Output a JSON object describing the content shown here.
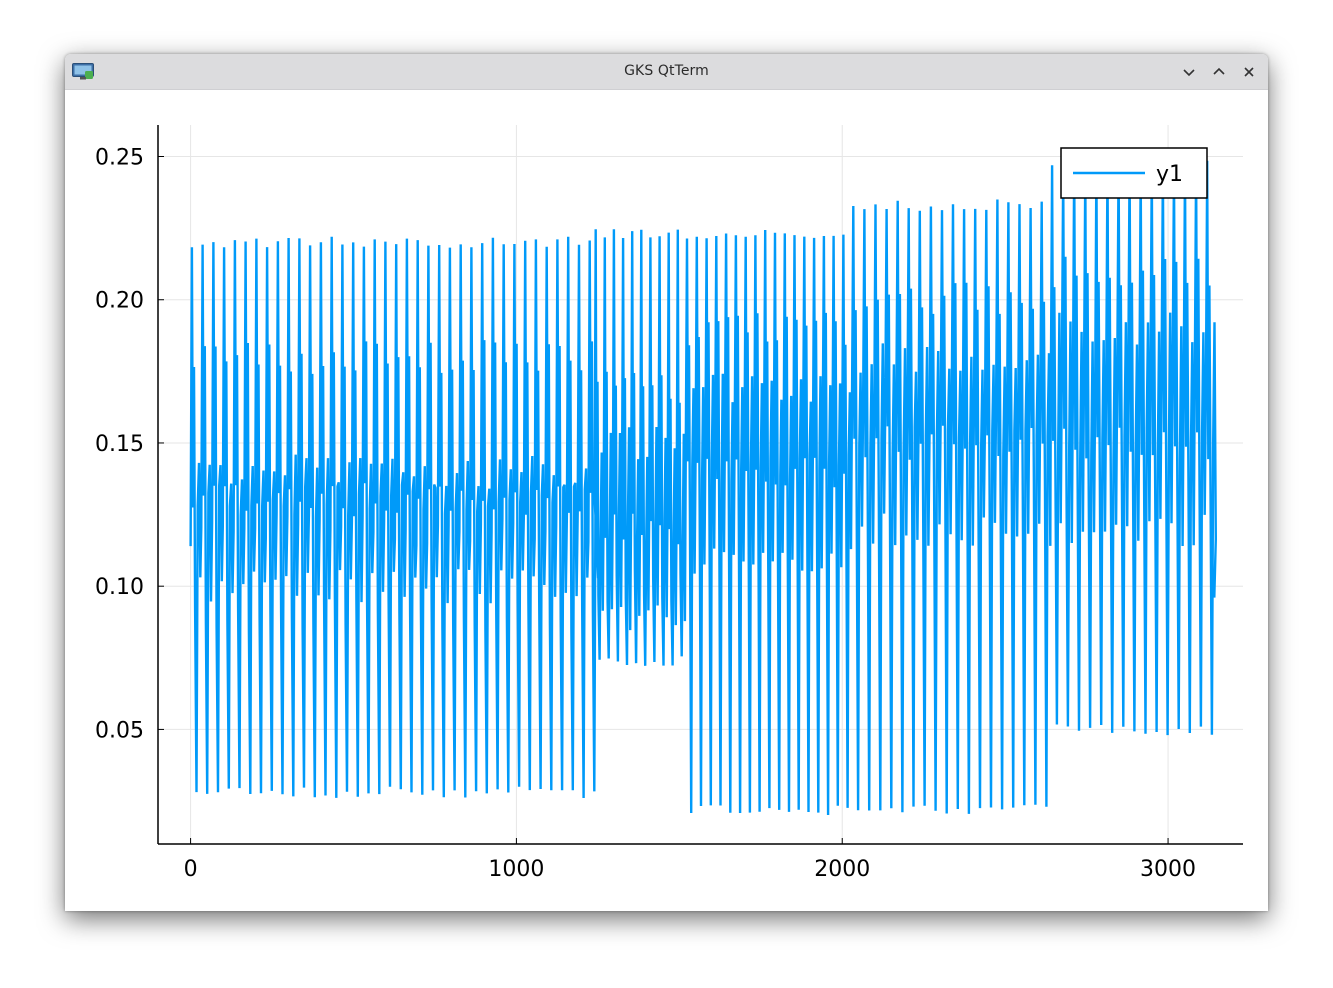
{
  "window": {
    "title": "GKS QtTerm",
    "icon": "monitor-icon",
    "controls": [
      "minimize-chevron-icon",
      "maximize-chevron-icon",
      "close-icon"
    ]
  },
  "colors": {
    "series": "#009af9",
    "grid": "#e6e6e6",
    "axis": "#000000",
    "titlebar": "#dcdcde"
  },
  "chart_data": {
    "type": "line",
    "title": "",
    "xlabel": "",
    "ylabel": "",
    "xlim": [
      -100,
      3230
    ],
    "ylim": [
      0.01,
      0.261
    ],
    "xticks": [
      0,
      1000,
      2000,
      3000
    ],
    "xtick_labels": [
      "0",
      "1000",
      "2000",
      "3000"
    ],
    "yticks": [
      0.05,
      0.1,
      0.15,
      0.2,
      0.25
    ],
    "ytick_labels": [
      "0.05",
      "0.10",
      "0.15",
      "0.20",
      "0.25"
    ],
    "grid": true,
    "legend_position": "top-right",
    "series": [
      {
        "name": "y1",
        "color": "#009af9",
        "segments": [
          {
            "x_start": 0,
            "x_end": 1240,
            "cycle_length": 33,
            "peak": 0.222,
            "trough": 0.026,
            "mid_high": 0.18,
            "mid_low": 0.13,
            "level": 0.12
          },
          {
            "x_start": 1240,
            "x_end": 1520,
            "cycle_length": 28,
            "peak": 0.225,
            "trough": 0.072,
            "mid_high": 0.17,
            "mid_low": 0.12,
            "level": 0.13
          },
          {
            "x_start": 1520,
            "x_end": 2030,
            "cycle_length": 30,
            "peak": 0.225,
            "trough": 0.02,
            "mid_high": 0.19,
            "mid_low": 0.14,
            "level": 0.15
          },
          {
            "x_start": 2030,
            "x_end": 2640,
            "cycle_length": 34,
            "peak": 0.235,
            "trough": 0.02,
            "mid_high": 0.2,
            "mid_low": 0.15,
            "level": 0.16
          },
          {
            "x_start": 2640,
            "x_end": 3140,
            "cycle_length": 34,
            "peak": 0.25,
            "trough": 0.048,
            "mid_high": 0.21,
            "mid_low": 0.15,
            "level": 0.17
          }
        ]
      }
    ]
  }
}
